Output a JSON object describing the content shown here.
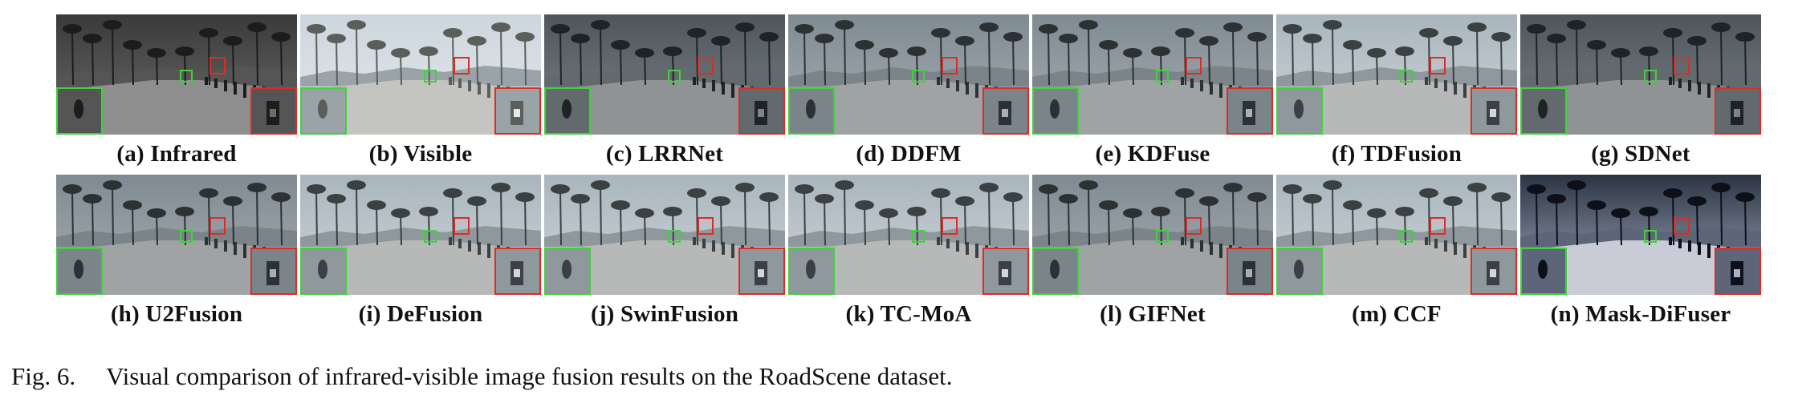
{
  "figure": {
    "rows": [
      [
        {
          "label": "(a) Infrared",
          "tone": "infrared"
        },
        {
          "label": "(b) Visible",
          "tone": "visible"
        },
        {
          "label": "(c) LRRNet",
          "tone": "dark"
        },
        {
          "label": "(d) DDFM",
          "tone": "mid"
        },
        {
          "label": "(e) KDFuse",
          "tone": "mid"
        },
        {
          "label": "(f) TDFusion",
          "tone": "light"
        },
        {
          "label": "(g) SDNet",
          "tone": "dark"
        }
      ],
      [
        {
          "label": "(h) U2Fusion",
          "tone": "mid"
        },
        {
          "label": "(i) DeFusion",
          "tone": "light"
        },
        {
          "label": "(j) SwinFusion",
          "tone": "light"
        },
        {
          "label": "(k) TC-MoA",
          "tone": "light"
        },
        {
          "label": "(l) GIFNet",
          "tone": "mid"
        },
        {
          "label": "(m) CCF",
          "tone": "light"
        },
        {
          "label": "(n) Mask-DiFuser",
          "tone": "contrast"
        }
      ]
    ],
    "box_colors": {
      "green": "#3fd23a",
      "red": "#e02a24"
    },
    "caption_number": "Fig. 6.",
    "caption_text": "Visual comparison of infrared-visible image fusion results on the RoadScene dataset."
  }
}
